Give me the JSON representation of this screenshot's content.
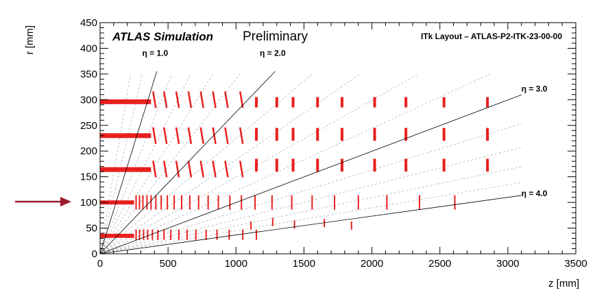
{
  "chart_data": {
    "type": "scatter",
    "title": "ATLAS Simulation",
    "subtitle": "Preliminary",
    "layout_label": "ITk Layout – ATLAS-P2-ITK-23-00-00",
    "xlabel": "z [mm]",
    "ylabel": "r [mm]",
    "xlim": [
      0,
      3500
    ],
    "ylim": [
      0,
      450
    ],
    "xticks": [
      0,
      500,
      1000,
      1500,
      2000,
      2500,
      3000,
      3500
    ],
    "yticks": [
      0,
      50,
      100,
      150,
      200,
      250,
      300,
      350,
      400,
      450
    ],
    "eta_lines": [
      {
        "label": "η = 1.0",
        "eta": 1.0
      },
      {
        "label": "η = 2.0",
        "eta": 2.0
      },
      {
        "label": "η = 3.0",
        "eta": 3.0
      },
      {
        "label": "η = 4.0",
        "eta": 4.0
      }
    ],
    "guide_lines_eta": [
      0.6,
      0.8,
      1.2,
      1.4,
      1.6,
      1.8,
      2.2,
      2.4,
      2.6,
      2.8,
      3.2,
      3.4,
      3.6,
      3.8
    ],
    "strip_barrel_r": [
      296,
      230,
      164
    ],
    "strip_barrel_z_max": 375,
    "pixel_barrel": [
      {
        "r": 100,
        "z_max": 250
      },
      {
        "r": 35,
        "z_max": 250
      }
    ],
    "strip_endcap": {
      "z": [
        1150,
        1300,
        1420,
        1600,
        1780,
        2020,
        2250,
        2530,
        2850
      ],
      "r_ranges": [
        [
          285,
          305
        ],
        [
          220,
          245
        ],
        [
          160,
          185
        ]
      ]
    },
    "strip_barrel_rings": {
      "z": [
        400,
        480,
        570,
        660,
        750,
        840,
        930,
        1040
      ],
      "r": [
        300,
        230,
        165
      ]
    },
    "pixel_layer_rings": {
      "r": 100,
      "z": [
        265,
        290,
        315,
        345,
        375,
        410,
        450,
        495,
        545,
        600,
        660,
        725,
        795,
        870,
        955,
        1040,
        1140,
        1265,
        1410,
        1560,
        1725,
        1900,
        2110,
        2350,
        2610
      ]
    },
    "pixel_inner_rings": {
      "r": 35,
      "z": [
        265,
        290,
        320,
        350,
        385,
        425,
        470,
        520,
        580,
        640,
        705,
        780,
        860,
        950,
        1050,
        1150
      ]
    },
    "pixel_inner_disks": {
      "z": [
        1110,
        1270,
        1430,
        1650,
        1850
      ],
      "r": [
        55,
        62,
        57,
        60,
        55
      ]
    },
    "colors": {
      "modules": "#e8201e",
      "axis": "#000000",
      "guides": "#b0b0b0",
      "arrow": "#9b1c2a"
    }
  }
}
